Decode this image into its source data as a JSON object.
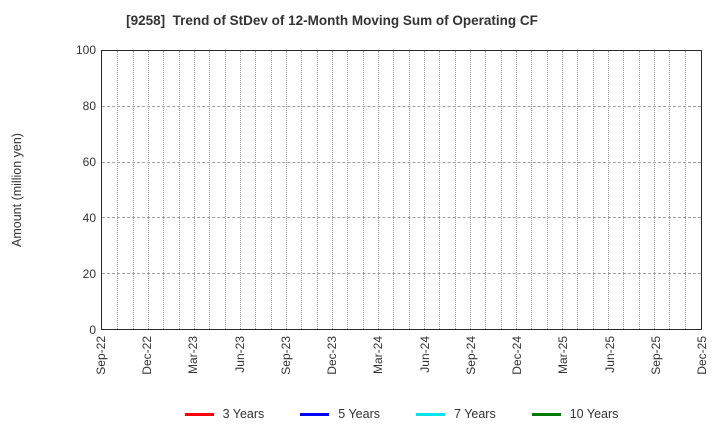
{
  "chart_data": {
    "type": "line",
    "title": "[9258]  Trend of StDev of 12-Month Moving Sum of Operating CF",
    "xlabel": "",
    "ylabel": "Amount (million yen)",
    "ylim": [
      0,
      100
    ],
    "y_ticks": [
      0,
      20,
      40,
      60,
      80,
      100
    ],
    "x_months_total": 40,
    "x_label_every_months": 3,
    "x_tick_labels": [
      "Sep-22",
      "Dec-22",
      "Mar-23",
      "Jun-23",
      "Sep-23",
      "Dec-23",
      "Mar-24",
      "Jun-24",
      "Sep-24",
      "Dec-24",
      "Mar-25",
      "Jun-25",
      "Sep-25",
      "Dec-25"
    ],
    "grid": {
      "vertical_style": "dotted",
      "horizontal_style": "dashed",
      "color": "#999999",
      "vertical_interval": "monthly"
    },
    "legend_position": "bottom",
    "series": [
      {
        "name": "3 Years",
        "color": "#ff0000",
        "values": []
      },
      {
        "name": "5 Years",
        "color": "#0000ff",
        "values": []
      },
      {
        "name": "7 Years",
        "color": "#00e5ee",
        "values": []
      },
      {
        "name": "10 Years",
        "color": "#007a00",
        "values": []
      }
    ],
    "note": "plot area is empty - no data lines drawn"
  }
}
